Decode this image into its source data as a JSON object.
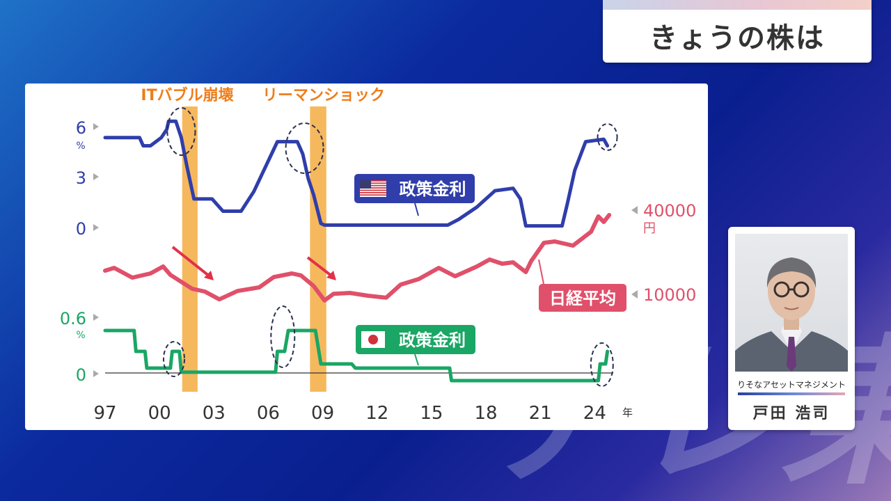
{
  "header": {
    "title": "きょうの株は"
  },
  "watermark": "テレ東",
  "guest": {
    "company": "りそなアセットマネジメント",
    "name": "戸田 浩司"
  },
  "chart_data": {
    "type": "line",
    "x_ticks": [
      "97",
      "00",
      "03",
      "06",
      "09",
      "12",
      "15",
      "18",
      "21",
      "24"
    ],
    "x_unit": "年",
    "x_range": [
      1997,
      2024.9
    ],
    "events": [
      {
        "label": "ITバブル崩壊",
        "start": 2001.25,
        "end": 2002.1
      },
      {
        "label": "リーマンショック",
        "start": 2008.3,
        "end": 2009.2
      }
    ],
    "series": [
      {
        "name": "政策金利",
        "flag": "us",
        "color": "#2f3eaa",
        "y_ticks": [
          "0",
          "3",
          "6"
        ],
        "y_unit": "%",
        "y_range": [
          0,
          6
        ],
        "x": [
          1997,
          1998.9,
          1999.1,
          1999.5,
          2000.1,
          2000.4,
          2000.5,
          2000.9,
          2001.2,
          2001.5,
          2001.9,
          2002.9,
          2003.5,
          2004.5,
          2005.2,
          2006.5,
          2007.6,
          2007.9,
          2008.2,
          2008.5,
          2008.9,
          2009.1,
          2015.9,
          2016.5,
          2017.5,
          2018.5,
          2019.5,
          2019.9,
          2020.2,
          2022.2,
          2022.5,
          2022.9,
          2023.5,
          2024.5,
          2024.7
        ],
        "values": [
          5.5,
          5.5,
          5,
          5,
          5.5,
          6,
          6.5,
          6.5,
          5.5,
          3.8,
          1.75,
          1.75,
          1,
          1,
          2.2,
          5.25,
          5.25,
          4.5,
          3,
          2,
          0.25,
          0.15,
          0.15,
          0.5,
          1.25,
          2.25,
          2.4,
          1.75,
          0.1,
          0.1,
          1.5,
          3.5,
          5.25,
          5.4,
          5
        ],
        "circles": [
          2001.2,
          2008.0,
          2024.7
        ]
      },
      {
        "name": "日経平均",
        "color": "#e0506a",
        "y_ticks": [
          "10000",
          "40000"
        ],
        "y_unit": "円",
        "y_range": [
          10000,
          40000
        ],
        "x": [
          1997,
          1997.5,
          1998.5,
          1999.5,
          2000.2,
          2000.6,
          2001.2,
          2001.8,
          2002.5,
          2003.3,
          2004.3,
          2005.5,
          2006.3,
          2007.3,
          2007.8,
          2008.5,
          2009.1,
          2009.6,
          2010.5,
          2011.5,
          2012.5,
          2013.3,
          2014.3,
          2015.4,
          2016.3,
          2017.5,
          2018.2,
          2018.9,
          2019.5,
          2020.2,
          2020.5,
          2021.2,
          2021.8,
          2022.8,
          2023.4,
          2023.8,
          2024.2,
          2024.5,
          2024.8
        ],
        "values": [
          18500,
          19500,
          16000,
          17500,
          20000,
          17000,
          14500,
          12000,
          11000,
          8200,
          11200,
          12500,
          16200,
          17500,
          16800,
          13000,
          7800,
          10200,
          10500,
          9500,
          8800,
          13500,
          15500,
          19500,
          16500,
          20000,
          22500,
          21000,
          21500,
          18000,
          22000,
          28500,
          29000,
          27500,
          30500,
          32500,
          38000,
          36000,
          38500
        ],
        "callout_x": 2019.9
      },
      {
        "name": "政策金利",
        "flag": "jp",
        "color": "#1aa665",
        "y_ticks": [
          "0",
          "0.6"
        ],
        "y_unit": "%",
        "y_range": [
          -0.1,
          0.6
        ],
        "x": [
          1997,
          1998.6,
          1998.7,
          1999.2,
          1999.3,
          2000.6,
          2000.7,
          2001.1,
          2001.2,
          2006.4,
          2006.5,
          2006.9,
          2007.1,
          2008.6,
          2008.9,
          2010.6,
          2010.8,
          2016.0,
          2016.1,
          2024.2,
          2024.3,
          2024.6,
          2024.7
        ],
        "values": [
          0.5,
          0.5,
          0.25,
          0.25,
          0.05,
          0.05,
          0.25,
          0.25,
          0.001,
          0.001,
          0.25,
          0.25,
          0.5,
          0.5,
          0.1,
          0.1,
          0.05,
          0.05,
          -0.1,
          -0.1,
          0.1,
          0.1,
          0.25
        ],
        "circles": [
          2000.8,
          2006.8,
          2024.4
        ]
      }
    ]
  }
}
